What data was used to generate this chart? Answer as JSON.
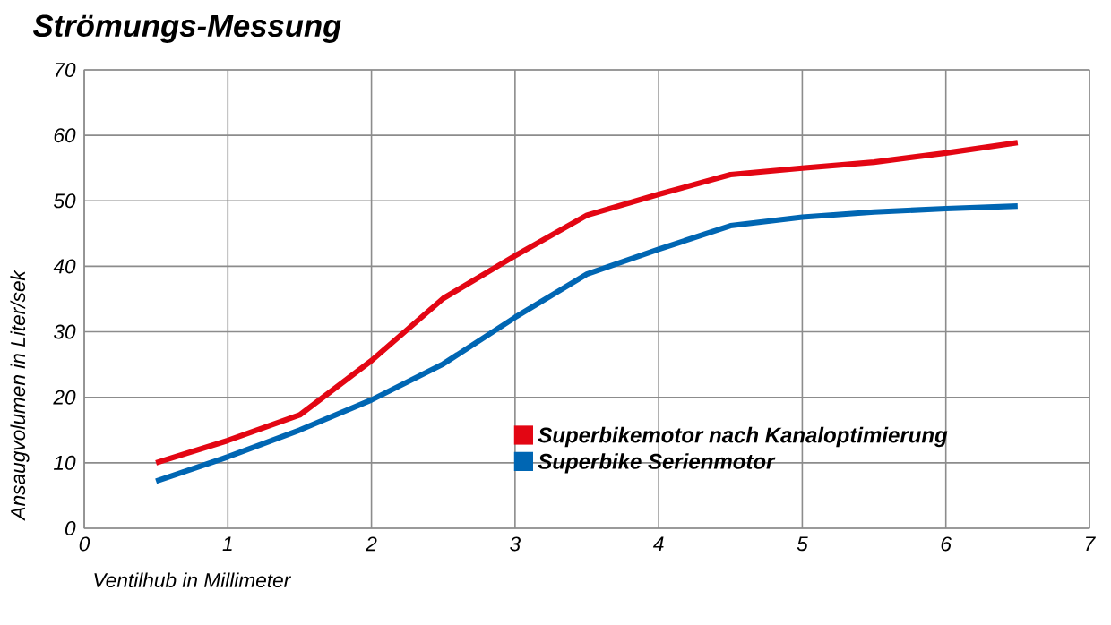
{
  "chart_data": {
    "type": "line",
    "title": "Strömungs-Messung",
    "xlabel": "Ventilhub in Millimeter",
    "ylabel": "Ansaugvolumen in Liter/sek",
    "x": [
      0.5,
      1,
      1.5,
      2,
      2.5,
      3,
      3.5,
      4,
      4.5,
      5,
      5.5,
      6,
      6.5
    ],
    "series": [
      {
        "name": "Superbikemotor nach Kanaloptimierung",
        "color": "#e30613",
        "values": [
          10,
          13.4,
          17.3,
          25.6,
          35.1,
          41.6,
          47.8,
          51,
          54,
          55,
          55.9,
          57.3,
          58.9
        ]
      },
      {
        "name": "Superbike Serienmotor",
        "color": "#0066b3",
        "values": [
          7.2,
          10.9,
          15,
          19.6,
          25.1,
          32.2,
          38.8,
          42.6,
          46.2,
          47.5,
          48.3,
          48.8,
          49.2
        ]
      }
    ],
    "xlim": [
      0,
      7
    ],
    "xticks": [
      0,
      1,
      2,
      3,
      4,
      5,
      6,
      7
    ],
    "ylim": [
      0,
      70
    ],
    "yticks": [
      0,
      10,
      20,
      30,
      40,
      50,
      60,
      70
    ],
    "grid": true,
    "legend": "bottom right",
    "marker": "none",
    "line_style": "solid"
  }
}
